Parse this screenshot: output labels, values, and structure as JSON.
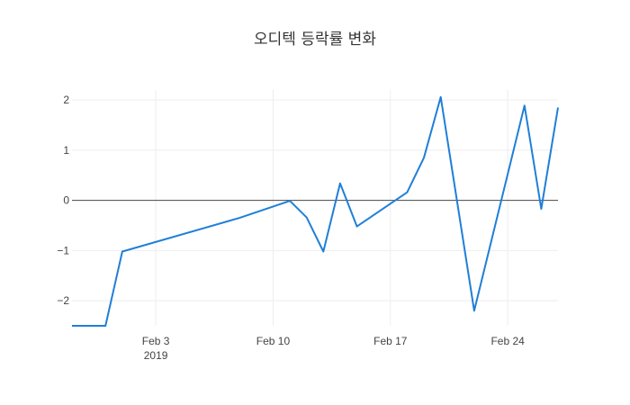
{
  "chart_data": {
    "type": "line",
    "title": "오디텍 등락률 변화",
    "xlabel": "",
    "ylabel": "",
    "x_range": [
      "2019-01-29",
      "2019-02-27"
    ],
    "ylim": [
      -2.5,
      2.2
    ],
    "grid": true,
    "colors": {
      "line": "#1f7fd8",
      "zero_line": "#444444",
      "grid": "#eeeeee"
    },
    "x_ticks": [
      {
        "date": "2019-02-03",
        "label": "Feb 3",
        "sublabel": "2019"
      },
      {
        "date": "2019-02-10",
        "label": "Feb 10",
        "sublabel": ""
      },
      {
        "date": "2019-02-17",
        "label": "Feb 17",
        "sublabel": ""
      },
      {
        "date": "2019-02-24",
        "label": "Feb 24",
        "sublabel": ""
      }
    ],
    "y_ticks": [
      {
        "value": 2,
        "label": "2"
      },
      {
        "value": 1,
        "label": "1"
      },
      {
        "value": 0,
        "label": "0"
      },
      {
        "value": -1,
        "label": "−1"
      },
      {
        "value": -2,
        "label": "−2"
      }
    ],
    "series": [
      {
        "x": [
          "2019-01-29",
          "2019-01-31",
          "2019-02-01",
          "2019-02-08",
          "2019-02-11",
          "2019-02-12",
          "2019-02-13",
          "2019-02-14",
          "2019-02-15",
          "2019-02-18",
          "2019-02-19",
          "2019-02-20",
          "2019-02-22",
          "2019-02-25",
          "2019-02-26",
          "2019-02-27"
        ],
        "y": [
          -2.5,
          -2.5,
          -1.02,
          -0.35,
          -0.01,
          -0.34,
          -1.02,
          0.34,
          -0.52,
          0.16,
          0.85,
          2.06,
          -2.2,
          1.89,
          -0.17,
          1.85
        ]
      }
    ]
  }
}
